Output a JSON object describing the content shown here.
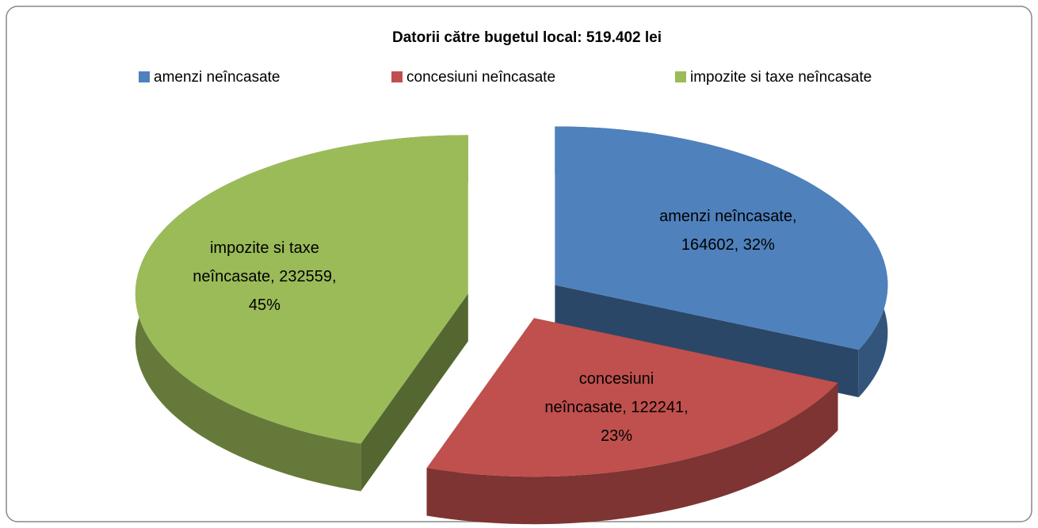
{
  "chart_data": {
    "type": "pie3d",
    "title": "Datorii către bugetul local: 519.402 lei",
    "categories": [
      "amenzi neîncasate",
      "concesiuni neîncasate",
      "impozite si taxe neîncasate"
    ],
    "values": [
      164602,
      122241,
      232559
    ],
    "value_labels": [
      "amenzi neîncasate, 164602, 32%",
      "concesiuni neîncasate, 122241, 23%",
      "impozite si taxe neîncasate, 232559, 45%"
    ],
    "colors": [
      "#4f81bd",
      "#c0504d",
      "#9bbb59"
    ],
    "legend": "top"
  }
}
